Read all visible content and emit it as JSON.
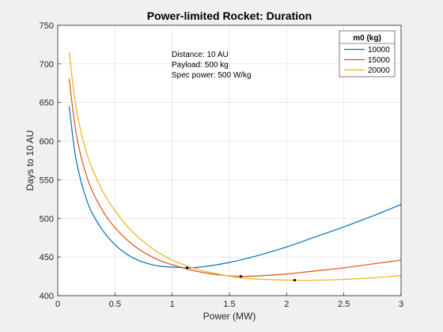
{
  "chart_data": {
    "type": "line",
    "title": "Power-limited Rocket: Duration",
    "xlabel": "Power (MW)",
    "ylabel": "Days to 10 AU",
    "xlim": [
      0,
      3
    ],
    "ylim": [
      400,
      750
    ],
    "xticks": [
      0,
      0.5,
      1,
      1.5,
      2,
      2.5,
      3
    ],
    "yticks": [
      400,
      450,
      500,
      550,
      600,
      650,
      700,
      750
    ],
    "xtick_labels": [
      "0",
      "0.5",
      "1",
      "1.5",
      "2",
      "2.5",
      "3"
    ],
    "ytick_labels": [
      "400",
      "450",
      "500",
      "550",
      "600",
      "650",
      "700",
      "750"
    ],
    "grid": true,
    "annotations": [
      "Distance: 10 AU",
      "Payload: 500 kg",
      "Spec power: 500 W/kg"
    ],
    "legend": {
      "title": "m0 (kg)",
      "placement": "top-right"
    },
    "series": [
      {
        "name": "10000",
        "color": "#0072BD",
        "x": [
          0.1,
          0.15,
          0.2,
          0.25,
          0.3,
          0.4,
          0.5,
          0.6,
          0.7,
          0.8,
          0.9,
          1.0,
          1.13,
          1.25,
          1.5,
          1.75,
          2.0,
          2.25,
          2.5,
          2.75,
          3.0
        ],
        "y": [
          645,
          585,
          550,
          525,
          507,
          483,
          466,
          454,
          446,
          441,
          438,
          437,
          436,
          437,
          443,
          452,
          463,
          476,
          489,
          503,
          518
        ],
        "optimum": {
          "x": 1.13,
          "y": 436
        }
      },
      {
        "name": "15000",
        "color": "#D95319",
        "x": [
          0.1,
          0.15,
          0.2,
          0.25,
          0.3,
          0.4,
          0.5,
          0.6,
          0.7,
          0.8,
          0.9,
          1.0,
          1.2,
          1.4,
          1.6,
          1.8,
          2.0,
          2.25,
          2.5,
          2.75,
          3.0
        ],
        "y": [
          681,
          620,
          582,
          556,
          536,
          508,
          488,
          473,
          461,
          452,
          445,
          440,
          432,
          427,
          425,
          426,
          428,
          432,
          436,
          441,
          446
        ],
        "optimum": {
          "x": 1.6,
          "y": 425
        }
      },
      {
        "name": "20000",
        "color": "#EDB120",
        "x": [
          0.1,
          0.15,
          0.2,
          0.25,
          0.3,
          0.4,
          0.5,
          0.6,
          0.7,
          0.8,
          0.9,
          1.0,
          1.2,
          1.4,
          1.6,
          1.8,
          2.07,
          2.25,
          2.5,
          2.75,
          3.0
        ],
        "y": [
          715,
          653,
          614,
          586,
          565,
          533,
          510,
          491,
          476,
          464,
          454,
          446,
          435,
          428,
          423,
          421,
          420,
          420,
          421,
          423,
          426
        ],
        "optimum": {
          "x": 2.07,
          "y": 420
        }
      }
    ]
  }
}
